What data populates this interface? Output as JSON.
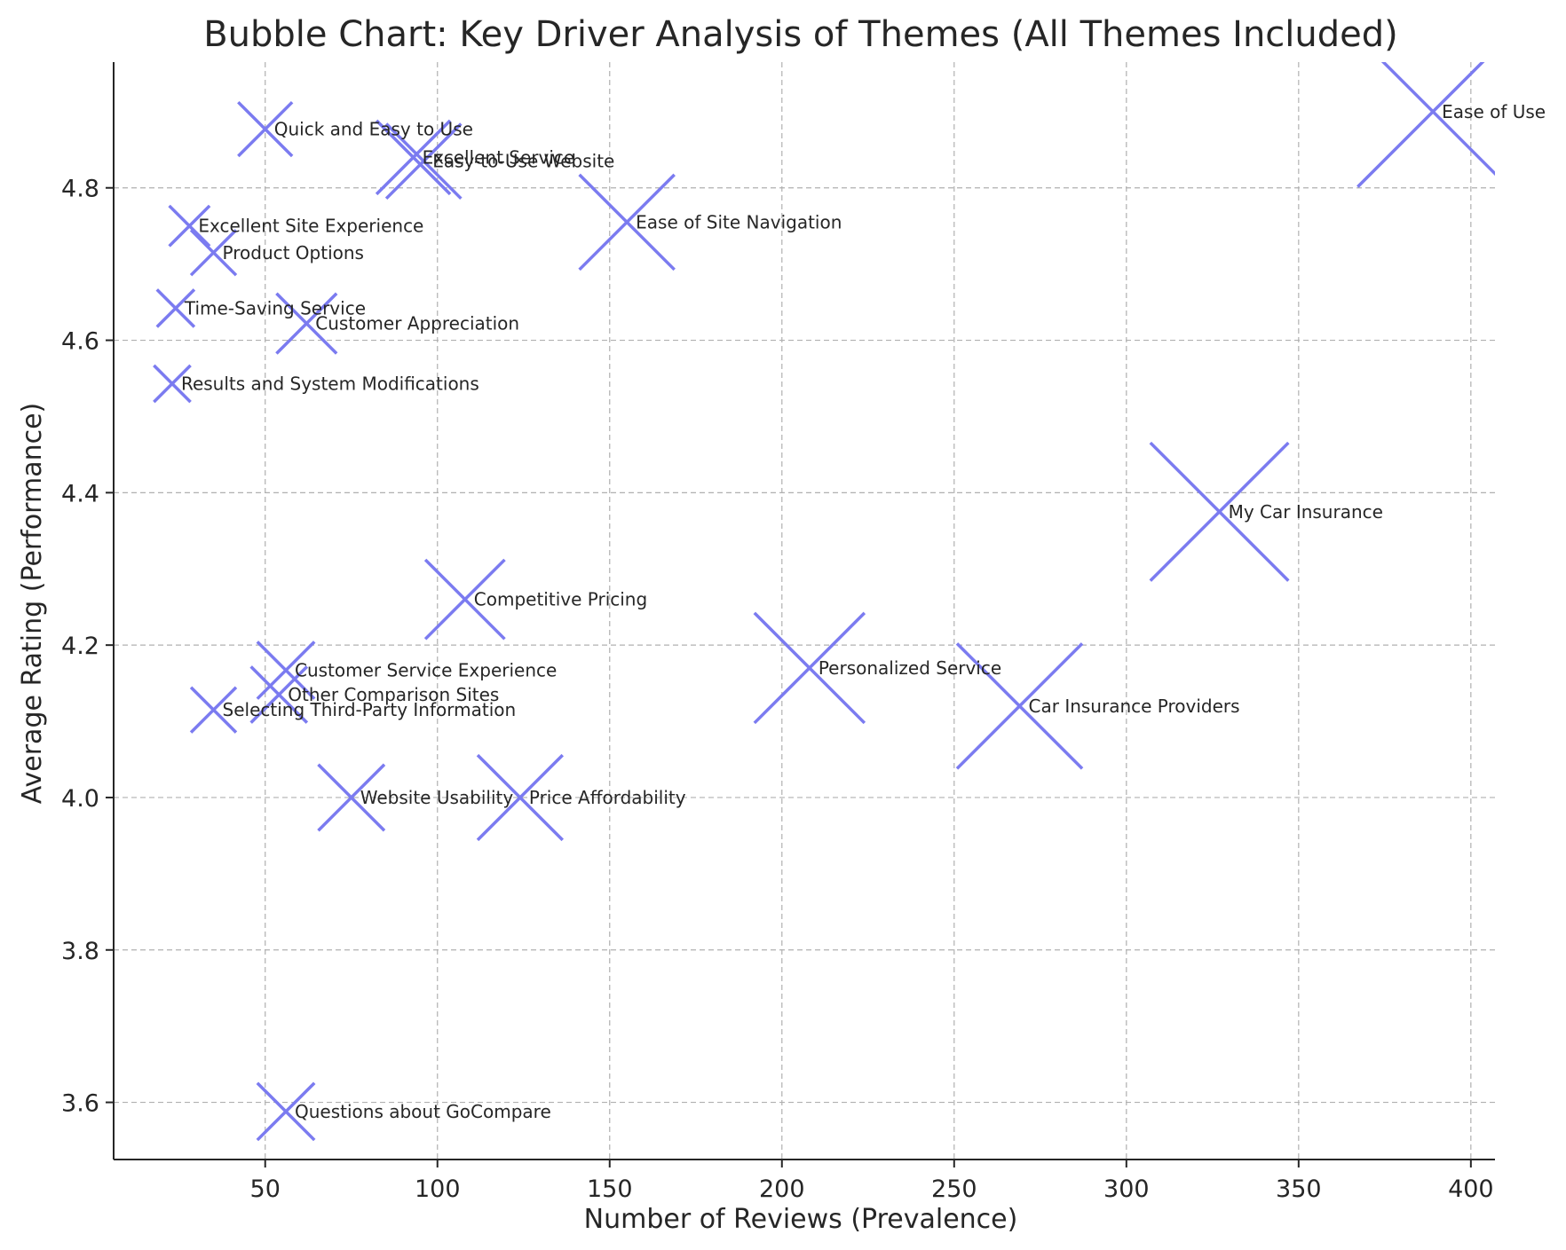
{
  "chart_data": {
    "type": "scatter",
    "title": "Bubble Chart: Key Driver Analysis of Themes (All Themes Included)",
    "xlabel": "Number of Reviews (Prevalence)",
    "ylabel": "Average Rating (Performance)",
    "xlim": [
      6,
      407
    ],
    "ylim": [
      3.525,
      4.965
    ],
    "xticks": [
      50,
      100,
      150,
      200,
      250,
      300,
      350,
      400
    ],
    "yticks": [
      3.6,
      3.8,
      4.0,
      4.2,
      4.4,
      4.6,
      4.8
    ],
    "ytick_labels": [
      "3.6",
      "3.8",
      "4.0",
      "4.2",
      "4.4",
      "4.6",
      "4.8"
    ],
    "grid": true,
    "marker": "x",
    "marker_color": "#7b7bf0",
    "points": [
      {
        "label": "Ease of Use",
        "x": 389,
        "y": 4.9
      },
      {
        "label": "My Car Insurance",
        "x": 327,
        "y": 4.375
      },
      {
        "label": "Car Insurance Providers",
        "x": 269,
        "y": 4.12
      },
      {
        "label": "Personalized Service",
        "x": 208,
        "y": 4.17
      },
      {
        "label": "Ease of Site Navigation",
        "x": 155,
        "y": 4.755
      },
      {
        "label": "Competitive Pricing",
        "x": 108,
        "y": 4.26
      },
      {
        "label": "Price Affordability",
        "x": 124,
        "y": 4.0
      },
      {
        "label": "Excellent Service",
        "x": 93,
        "y": 4.84
      },
      {
        "label": "Easy-to-Use Website",
        "x": 96,
        "y": 4.835
      },
      {
        "label": "Quick and Easy to Use",
        "x": 50,
        "y": 4.877
      },
      {
        "label": "Customer Appreciation",
        "x": 62,
        "y": 4.622
      },
      {
        "label": "Website Usability",
        "x": 75,
        "y": 4.0
      },
      {
        "label": "Customer Service Experience",
        "x": 56,
        "y": 4.167
      },
      {
        "label": "Other Comparison Sites",
        "x": 54,
        "y": 4.135
      },
      {
        "label": "Selecting Third-Party Information",
        "x": 35,
        "y": 4.115
      },
      {
        "label": "Excellent Site Experience",
        "x": 28,
        "y": 4.75
      },
      {
        "label": "Product Options",
        "x": 35,
        "y": 4.715
      },
      {
        "label": "Time-Saving Service",
        "x": 24,
        "y": 4.642
      },
      {
        "label": "Results and System Modifications",
        "x": 23,
        "y": 4.543
      },
      {
        "label": "Questions about GoCompare",
        "x": 56,
        "y": 3.588
      }
    ]
  }
}
